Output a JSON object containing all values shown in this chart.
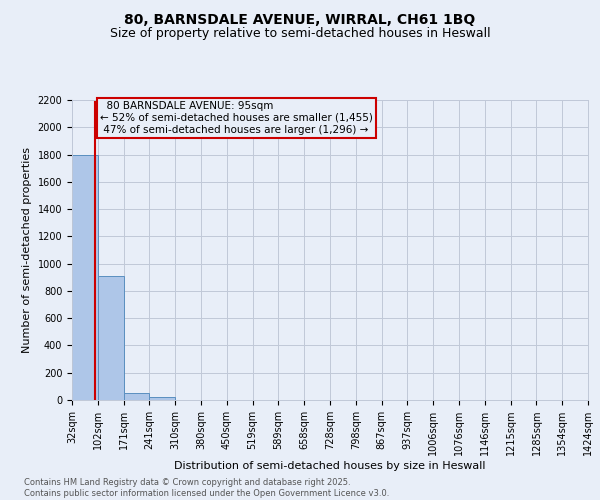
{
  "title1": "80, BARNSDALE AVENUE, WIRRAL, CH61 1BQ",
  "title2": "Size of property relative to semi-detached houses in Heswall",
  "xlabel": "Distribution of semi-detached houses by size in Heswall",
  "ylabel": "Number of semi-detached properties",
  "footer1": "Contains HM Land Registry data © Crown copyright and database right 2025.",
  "footer2": "Contains public sector information licensed under the Open Government Licence v3.0.",
  "bar_edges": [
    32,
    102,
    171,
    241,
    310,
    380,
    450,
    519,
    589,
    658,
    728,
    798,
    867,
    937,
    1006,
    1076,
    1146,
    1215,
    1285,
    1354,
    1424
  ],
  "bar_heights": [
    1800,
    910,
    50,
    20,
    0,
    0,
    0,
    0,
    0,
    0,
    0,
    0,
    0,
    0,
    0,
    0,
    0,
    0,
    0,
    0
  ],
  "bar_color": "#aec6e8",
  "bar_edge_color": "#5a8fc0",
  "property_size": 95,
  "property_label": "80 BARNSDALE AVENUE: 95sqm",
  "pct_smaller": 52,
  "pct_smaller_n": 1455,
  "pct_larger": 47,
  "pct_larger_n": 1296,
  "red_line_color": "#cc0000",
  "annotation_box_color": "#cc0000",
  "ylim": [
    0,
    2200
  ],
  "yticks": [
    0,
    200,
    400,
    600,
    800,
    1000,
    1200,
    1400,
    1600,
    1800,
    2000,
    2200
  ],
  "bg_color": "#e8eef8",
  "grid_color": "#c0c8d8",
  "title_fontsize": 10,
  "subtitle_fontsize": 9,
  "axis_label_fontsize": 8,
  "tick_fontsize": 7,
  "annotation_fontsize": 7.5,
  "footer_fontsize": 6
}
